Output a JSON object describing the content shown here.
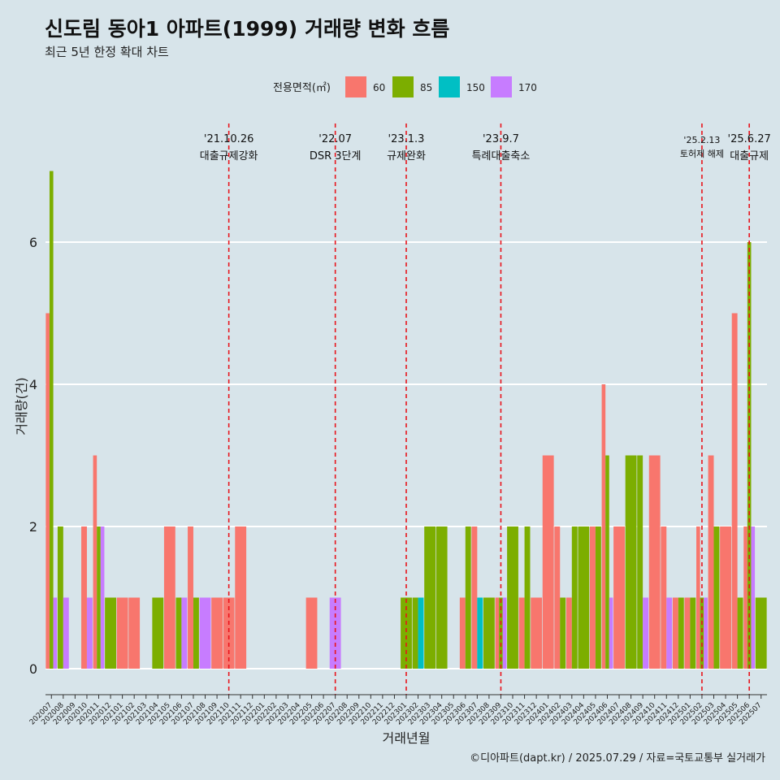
{
  "title": "신도림 동아1 아파트(1999) 거래량 변화 흐름",
  "subtitle": "최근 5년 한정 확대 차트",
  "caption": "©디아파트(dapt.kr) / 2025.07.29 / 자료=국토교통부 실거래가",
  "colors": {
    "background": "#d7e4ea",
    "grid": "#ffffff",
    "event_line": "#e8141c",
    "60": "#f8766d",
    "85": "#7cae00",
    "150": "#00bfc4",
    "170": "#c77cff"
  },
  "chart_data": {
    "type": "bar",
    "xlabel": "거래년월",
    "ylabel": "거래량(건)",
    "ylim": [
      -0.3,
      7.0
    ],
    "yticks": [
      0,
      2,
      4,
      6
    ],
    "grid": true,
    "legend": {
      "title": "전용면적(㎡)",
      "position": "top",
      "items": [
        "60",
        "85",
        "150",
        "170"
      ]
    },
    "months": [
      "202007",
      "202008",
      "202009",
      "202010",
      "202011",
      "202012",
      "202101",
      "202102",
      "202103",
      "202104",
      "202105",
      "202106",
      "202107",
      "202108",
      "202109",
      "202110",
      "202111",
      "202112",
      "202201",
      "202202",
      "202203",
      "202204",
      "202205",
      "202206",
      "202207",
      "202208",
      "202209",
      "202210",
      "202211",
      "202212",
      "202301",
      "202302",
      "202303",
      "202304",
      "202305",
      "202306",
      "202307",
      "202308",
      "202309",
      "202310",
      "202311",
      "202312",
      "202401",
      "202402",
      "202403",
      "202404",
      "202405",
      "202406",
      "202407",
      "202408",
      "202409",
      "202410",
      "202411",
      "202412",
      "202501",
      "202502",
      "202503",
      "202504",
      "202505",
      "202506",
      "202507"
    ],
    "series": [
      {
        "name": "60",
        "color": "#f8766d",
        "values": [
          5,
          0,
          0,
          2,
          3,
          0,
          1,
          1,
          0,
          0,
          2,
          0,
          2,
          0,
          1,
          1,
          2,
          0,
          0,
          0,
          0,
          0,
          1,
          0,
          0,
          0,
          0,
          0,
          0,
          0,
          0,
          0,
          0,
          0,
          0,
          1,
          2,
          0,
          1,
          0,
          1,
          1,
          3,
          2,
          1,
          0,
          2,
          4,
          2,
          0,
          0,
          3,
          2,
          1,
          1,
          2,
          3,
          2,
          5,
          2,
          0
        ]
      },
      {
        "name": "85",
        "color": "#7cae00",
        "values": [
          7,
          2,
          0,
          0,
          2,
          1,
          0,
          0,
          0,
          1,
          0,
          1,
          1,
          0,
          0,
          0,
          0,
          0,
          0,
          0,
          0,
          0,
          0,
          0,
          0,
          0,
          0,
          0,
          0,
          0,
          1,
          1,
          2,
          2,
          0,
          2,
          0,
          1,
          1,
          2,
          2,
          0,
          0,
          1,
          2,
          2,
          2,
          3,
          0,
          3,
          3,
          0,
          0,
          1,
          1,
          1,
          2,
          0,
          1,
          6,
          1
        ]
      },
      {
        "name": "150",
        "color": "#00bfc4",
        "values": [
          0,
          0,
          0,
          0,
          0,
          0,
          0,
          0,
          0,
          0,
          0,
          0,
          0,
          0,
          0,
          0,
          0,
          0,
          0,
          0,
          0,
          0,
          0,
          0,
          0,
          0,
          0,
          0,
          0,
          0,
          0,
          1,
          0,
          0,
          0,
          0,
          1,
          0,
          0,
          0,
          0,
          0,
          0,
          0,
          0,
          0,
          0,
          0,
          0,
          0,
          0,
          0,
          0,
          0,
          0,
          0,
          0,
          0,
          0,
          0,
          0
        ]
      },
      {
        "name": "170",
        "color": "#c77cff",
        "values": [
          1,
          1,
          0,
          1,
          2,
          0,
          0,
          0,
          0,
          0,
          0,
          1,
          0,
          1,
          0,
          0,
          0,
          0,
          0,
          0,
          0,
          0,
          0,
          0,
          1,
          0,
          0,
          0,
          0,
          0,
          0,
          0,
          0,
          0,
          0,
          0,
          0,
          0,
          1,
          0,
          0,
          0,
          0,
          0,
          0,
          0,
          0,
          1,
          0,
          0,
          1,
          0,
          1,
          0,
          0,
          1,
          0,
          0,
          0,
          2,
          0
        ]
      }
    ],
    "annotations": [
      {
        "month": "202110",
        "date": "'21.10.26",
        "label": "대출규제강화"
      },
      {
        "month": "202207",
        "date": "'22.07",
        "label": "DSR 3단계"
      },
      {
        "month": "202301",
        "date": "'23.1.3",
        "label": "규제완화"
      },
      {
        "month": "202309",
        "date": "'23.9.7",
        "label": "특례대출축소"
      },
      {
        "month": "202502",
        "date": "'25.2.13",
        "label": "토허제 해제"
      },
      {
        "month": "202506",
        "date": "'25.6.27",
        "label": "대출규제"
      }
    ]
  }
}
